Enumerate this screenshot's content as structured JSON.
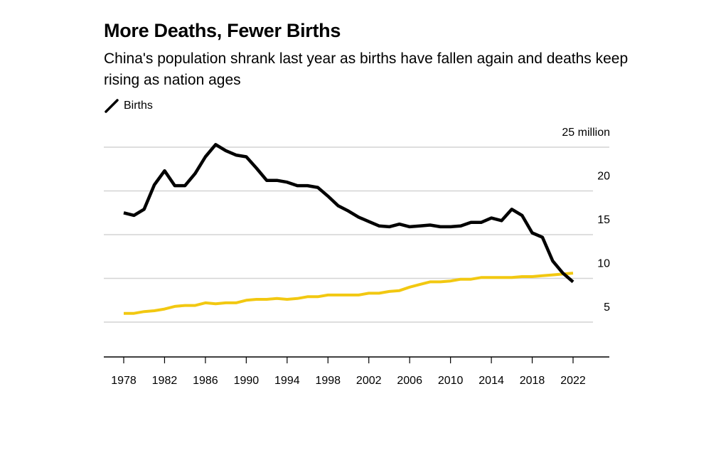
{
  "title": "More Deaths, Fewer Births",
  "subtitle": "China's population shrank last year as births have fallen again and deaths keep rising as nation ages",
  "legend": {
    "label": "Births",
    "color": "#000000"
  },
  "chart_data": {
    "type": "line",
    "y_unit_label": "25 million",
    "ylim": [
      5,
      25
    ],
    "y_ticks": [
      5,
      10,
      15,
      20,
      25
    ],
    "y_tick_labels": [
      "5",
      "10",
      "15",
      "20",
      "25 million"
    ],
    "x_ticks": [
      1978,
      1982,
      1986,
      1990,
      1994,
      1998,
      2002,
      2006,
      2010,
      2014,
      2018,
      2022
    ],
    "x_tick_labels": [
      "1978",
      "1982",
      "1986",
      "1990",
      "1994",
      "1998",
      "2002",
      "2006",
      "2010",
      "2014",
      "2018",
      "2022"
    ],
    "grid": true,
    "legend_position": "top-left",
    "series": [
      {
        "name": "Births",
        "color": "#000000",
        "x": [
          1978,
          1979,
          1980,
          1981,
          1982,
          1983,
          1984,
          1985,
          1986,
          1987,
          1988,
          1989,
          1990,
          1991,
          1992,
          1993,
          1994,
          1995,
          1996,
          1997,
          1998,
          1999,
          2000,
          2001,
          2002,
          2003,
          2004,
          2005,
          2006,
          2007,
          2008,
          2009,
          2010,
          2011,
          2012,
          2013,
          2014,
          2015,
          2016,
          2017,
          2018,
          2019,
          2020,
          2021,
          2022
        ],
        "values": [
          17.5,
          17.2,
          17.9,
          20.7,
          22.3,
          20.6,
          20.6,
          22.0,
          23.9,
          25.3,
          24.6,
          24.1,
          23.9,
          22.6,
          21.2,
          21.2,
          21.0,
          20.6,
          20.6,
          20.4,
          19.4,
          18.3,
          17.7,
          17.0,
          16.5,
          16.0,
          15.9,
          16.2,
          15.9,
          16.0,
          16.1,
          15.9,
          15.9,
          16.0,
          16.4,
          16.4,
          16.9,
          16.6,
          17.9,
          17.2,
          15.2,
          14.7,
          12.0,
          10.6,
          9.6
        ]
      },
      {
        "color": "#f2c811",
        "x": [
          1978,
          1979,
          1980,
          1981,
          1982,
          1983,
          1984,
          1985,
          1986,
          1987,
          1988,
          1989,
          1990,
          1991,
          1992,
          1993,
          1994,
          1995,
          1996,
          1997,
          1998,
          1999,
          2000,
          2001,
          2002,
          2003,
          2004,
          2005,
          2006,
          2007,
          2008,
          2009,
          2010,
          2011,
          2012,
          2013,
          2014,
          2015,
          2016,
          2017,
          2018,
          2019,
          2020,
          2021,
          2022
        ],
        "values": [
          6.0,
          6.0,
          6.2,
          6.3,
          6.5,
          6.8,
          6.9,
          6.9,
          7.2,
          7.1,
          7.2,
          7.2,
          7.5,
          7.6,
          7.6,
          7.7,
          7.6,
          7.7,
          7.9,
          7.9,
          8.1,
          8.1,
          8.1,
          8.1,
          8.3,
          8.3,
          8.5,
          8.6,
          9.0,
          9.3,
          9.6,
          9.6,
          9.7,
          9.9,
          9.9,
          10.1,
          10.1,
          10.1,
          10.1,
          10.2,
          10.2,
          10.3,
          10.4,
          10.5,
          10.6
        ]
      }
    ]
  }
}
